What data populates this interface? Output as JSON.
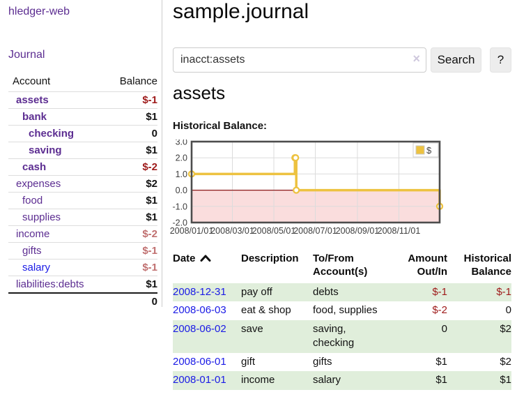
{
  "app": {
    "title": "hledger-web"
  },
  "colors": {
    "link_purple": "#5c2d91",
    "link_blue": "#1a1ae6",
    "negative_strong": "#9e1a1a",
    "negative_soft": "#c07070",
    "row_green": "#e0eedb",
    "chart_line": "#edc240",
    "chart_negative_fill": "#fadddd",
    "chart_zero_line": "#8b1a1a"
  },
  "sidebar": {
    "journal_link": "Journal",
    "accounts_table": {
      "headers": [
        "Account",
        "Balance"
      ],
      "rows": [
        {
          "name": "assets",
          "balance": "$-1",
          "indent": 1,
          "bold": true,
          "balance_color": "negative-strong"
        },
        {
          "name": "bank",
          "balance": "$1",
          "indent": 2,
          "bold": true,
          "balance_color": "normal"
        },
        {
          "name": "checking",
          "balance": "0",
          "indent": 3,
          "bold": true,
          "balance_color": "normal"
        },
        {
          "name": "saving",
          "balance": "$1",
          "indent": 3,
          "bold": true,
          "balance_color": "normal"
        },
        {
          "name": "cash",
          "balance": "$-2",
          "indent": 2,
          "bold": true,
          "balance_color": "negative-strong"
        },
        {
          "name": "expenses",
          "balance": "$2",
          "indent": 1,
          "bold": false,
          "balance_color": "normal"
        },
        {
          "name": "food",
          "balance": "$1",
          "indent": 2,
          "bold": false,
          "balance_color": "normal"
        },
        {
          "name": "supplies",
          "balance": "$1",
          "indent": 2,
          "bold": false,
          "balance_color": "normal"
        },
        {
          "name": "income",
          "balance": "$-2",
          "indent": 1,
          "bold": false,
          "balance_color": "negative-soft"
        },
        {
          "name": "gifts",
          "balance": "$-1",
          "indent": 2,
          "bold": false,
          "balance_color": "negative-soft"
        },
        {
          "name": "salary",
          "balance": "$-1",
          "indent": 2,
          "bold": false,
          "balance_color": "negative-soft",
          "link_color": "blue"
        },
        {
          "name": "liabilities:debts",
          "balance": "$1",
          "indent": 1,
          "bold": false,
          "balance_color": "normal"
        }
      ],
      "total": "0"
    }
  },
  "main": {
    "title": "sample.journal",
    "search": {
      "value": "inacct:assets",
      "clear_icon": {
        "name": "x-mark-icon",
        "char": "×"
      },
      "button_label": "Search",
      "help_label": "?"
    },
    "account_heading": "assets",
    "chart_heading": "Historical Balance:"
  },
  "chart_data": {
    "type": "line",
    "step": true,
    "title": "Historical Balance",
    "series": [
      {
        "name": "$",
        "color": "#edc240",
        "points": [
          {
            "x": "2008-01-01",
            "y": 1
          },
          {
            "x": "2008-06-01",
            "y": 2
          },
          {
            "x": "2008-06-02",
            "y": 2
          },
          {
            "x": "2008-06-03",
            "y": 0
          },
          {
            "x": "2008-12-31",
            "y": -1
          }
        ]
      }
    ],
    "x_range": [
      "2008-01-01",
      "2008-12-31"
    ],
    "ylim": [
      -2,
      3
    ],
    "ytick_values": [
      3,
      2,
      1,
      0,
      -1,
      -2
    ],
    "yticks": [
      "3.0",
      "2.0",
      "1.0",
      "0.0",
      "-1.0",
      "-2.0"
    ],
    "xticks": [
      {
        "label": "2008/01/01",
        "date": "2008-01-01"
      },
      {
        "label": "2008/03/01",
        "date": "2008-03-01"
      },
      {
        "label": "2008/05/01",
        "date": "2008-05-01"
      },
      {
        "label": "2008/07/01",
        "date": "2008-07-01"
      },
      {
        "label": "2008/09/01",
        "date": "2008-09-01"
      },
      {
        "label": "2008/11/01",
        "date": "2008-11-01"
      }
    ],
    "grid": true,
    "negative_region_shaded": true,
    "legend": {
      "label": "$",
      "position": "top-right"
    }
  },
  "register": {
    "headers": [
      {
        "label": "Date",
        "line2": "",
        "align": "left",
        "sort_icon": "chevron-up-icon"
      },
      {
        "label": "Description",
        "line2": "",
        "align": "left"
      },
      {
        "label": "To/From",
        "line2": "Account(s)",
        "align": "left"
      },
      {
        "label": "Amount",
        "line2": "Out/In",
        "align": "right"
      },
      {
        "label": "Historical",
        "line2": "Balance",
        "align": "right"
      }
    ],
    "rows": [
      {
        "date": "2008-12-31",
        "description": "pay off",
        "accounts": "debts",
        "amount": "$-1",
        "amount_negative": true,
        "balance": "$-1",
        "balance_negative": true,
        "highlight": true
      },
      {
        "date": "2008-06-03",
        "description": "eat & shop",
        "accounts": "food, supplies",
        "amount": "$-2",
        "amount_negative": true,
        "balance": "0",
        "balance_negative": false,
        "highlight": false
      },
      {
        "date": "2008-06-02",
        "description": "save",
        "accounts": "saving, checking",
        "amount": "0",
        "amount_negative": false,
        "balance": "$2",
        "balance_negative": false,
        "highlight": true
      },
      {
        "date": "2008-06-01",
        "description": "gift",
        "accounts": "gifts",
        "amount": "$1",
        "amount_negative": false,
        "balance": "$2",
        "balance_negative": false,
        "highlight": false
      },
      {
        "date": "2008-01-01",
        "description": "income",
        "accounts": "salary",
        "amount": "$1",
        "amount_negative": false,
        "balance": "$1",
        "balance_negative": false,
        "highlight": true
      }
    ]
  }
}
